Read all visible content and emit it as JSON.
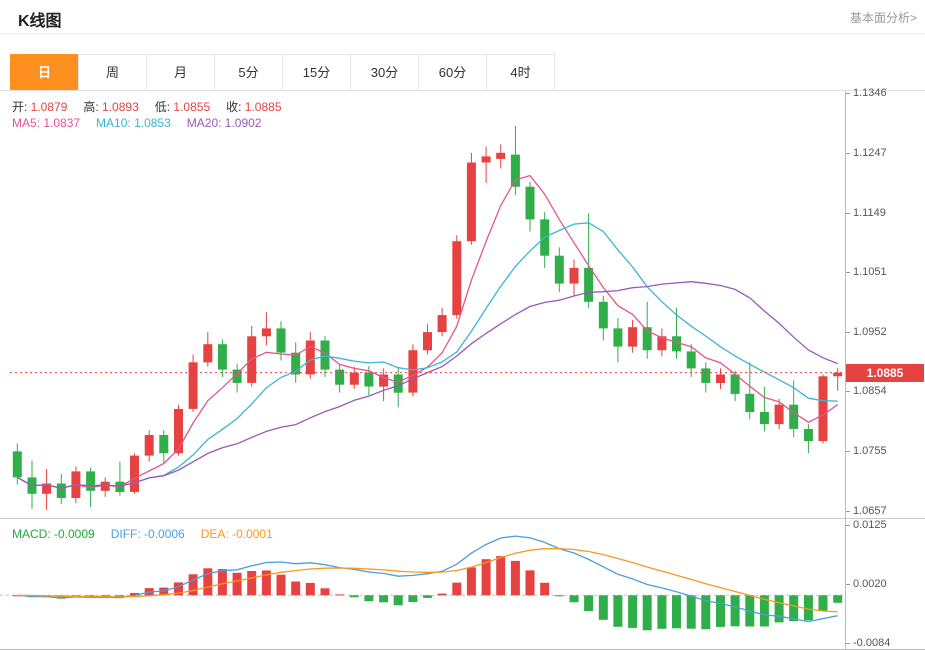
{
  "header": {
    "title": "K线图",
    "analysis_link": "基本面分析>"
  },
  "tabs": {
    "items": [
      "日",
      "周",
      "月",
      "5分",
      "15分",
      "30分",
      "60分",
      "4时"
    ],
    "active_index": 0
  },
  "legend": {
    "ohlc_colors": {
      "label": "#333333",
      "value": "#e64242"
    },
    "ohlc": [
      {
        "label": "开:",
        "value": "1.0879"
      },
      {
        "label": "高:",
        "value": "1.0893"
      },
      {
        "label": "低:",
        "value": "1.0855"
      },
      {
        "label": "收:",
        "value": "1.0885"
      }
    ],
    "ma": [
      {
        "label": "MA5:",
        "value": "1.0837",
        "color": "#e5548f"
      },
      {
        "label": "MA10:",
        "value": "1.0853",
        "color": "#3ab6d6"
      },
      {
        "label": "MA20:",
        "value": "1.0902",
        "color": "#9b59b6"
      }
    ],
    "macd": [
      {
        "label": "MACD:",
        "value": "-0.0009",
        "color": "#1faa38"
      },
      {
        "label": "DIFF:",
        "value": "-0.0006",
        "color": "#4a9fdd"
      },
      {
        "label": "DEA:",
        "value": "-0.0001",
        "color": "#f59a23"
      }
    ]
  },
  "chart_data": {
    "type": "candlestick",
    "title": "K线图",
    "current_price": 1.0885,
    "last_ohlc": {
      "open": 1.0879,
      "high": 1.0893,
      "low": 1.0855,
      "close": 1.0885
    },
    "colors": {
      "up": "#e64242",
      "down": "#2fae49",
      "ma5": "#e5548f",
      "ma10": "#3ab6d6",
      "ma20": "#9b59b6",
      "diff": "#4a9fdd",
      "dea": "#f59a23",
      "price_line": "#e64242"
    },
    "y_axis_labels": [
      1.1346,
      1.1247,
      1.1149,
      1.1051,
      1.0952,
      1.0854,
      1.0755,
      1.0657
    ],
    "y_range": {
      "max": 1.135,
      "min": 1.0645
    },
    "macd_axis_labels": [
      0.0125,
      0.002,
      -0.0084
    ],
    "macd_range": {
      "max": 0.0135,
      "min": -0.0095
    },
    "ma_periods": [
      5,
      10,
      20
    ],
    "candles": [
      [
        1.0755,
        1.0768,
        1.07,
        1.0712
      ],
      [
        1.0712,
        1.074,
        1.066,
        1.0685
      ],
      [
        1.0685,
        1.0726,
        1.0658,
        1.0702
      ],
      [
        1.0702,
        1.0718,
        1.0668,
        1.0678
      ],
      [
        1.0678,
        1.073,
        1.067,
        1.0722
      ],
      [
        1.0722,
        1.0728,
        1.0663,
        1.069
      ],
      [
        1.069,
        1.0712,
        1.068,
        1.0705
      ],
      [
        1.0705,
        1.0738,
        1.0682,
        1.0688
      ],
      [
        1.0688,
        1.0752,
        1.0685,
        1.0748
      ],
      [
        1.0748,
        1.079,
        1.0738,
        1.0782
      ],
      [
        1.0782,
        1.079,
        1.0735,
        1.0752
      ],
      [
        1.0752,
        1.0832,
        1.0748,
        1.0825
      ],
      [
        1.0825,
        1.0915,
        1.082,
        1.0902
      ],
      [
        1.0902,
        1.0952,
        1.0895,
        1.0932
      ],
      [
        1.0932,
        1.094,
        1.0878,
        1.089
      ],
      [
        1.089,
        1.09,
        1.0852,
        1.0868
      ],
      [
        1.0868,
        1.0962,
        1.0862,
        1.0945
      ],
      [
        1.0945,
        1.0985,
        1.093,
        1.0958
      ],
      [
        1.0958,
        1.097,
        1.0905,
        1.0918
      ],
      [
        1.0918,
        1.0935,
        1.0868,
        1.0882
      ],
      [
        1.0882,
        1.0952,
        1.0875,
        1.0938
      ],
      [
        1.0938,
        1.0945,
        1.0878,
        1.089
      ],
      [
        1.089,
        1.0898,
        1.0852,
        1.0865
      ],
      [
        1.0865,
        1.0895,
        1.0858,
        1.0885
      ],
      [
        1.0885,
        1.0896,
        1.0848,
        1.0862
      ],
      [
        1.0862,
        1.0892,
        1.0838,
        1.0882
      ],
      [
        1.0882,
        1.0894,
        1.0828,
        1.0852
      ],
      [
        1.0852,
        1.0932,
        1.0846,
        1.0922
      ],
      [
        1.0922,
        1.0965,
        1.0915,
        1.0952
      ],
      [
        1.0952,
        1.0992,
        1.0945,
        1.098
      ],
      [
        1.098,
        1.1112,
        1.0974,
        1.1102
      ],
      [
        1.1102,
        1.1248,
        1.1096,
        1.1232
      ],
      [
        1.1232,
        1.1258,
        1.1198,
        1.1242
      ],
      [
        1.1238,
        1.1262,
        1.1222,
        1.1248
      ],
      [
        1.1245,
        1.1292,
        1.1178,
        1.1192
      ],
      [
        1.1192,
        1.12,
        1.1118,
        1.1138
      ],
      [
        1.1138,
        1.115,
        1.1058,
        1.1078
      ],
      [
        1.1078,
        1.1092,
        1.1018,
        1.1032
      ],
      [
        1.1032,
        1.1072,
        1.1012,
        1.1058
      ],
      [
        1.1058,
        1.1148,
        1.0992,
        1.1002
      ],
      [
        1.1002,
        1.1012,
        1.0938,
        1.0958
      ],
      [
        1.0958,
        1.0975,
        1.0902,
        1.0928
      ],
      [
        1.0928,
        1.0972,
        1.0918,
        1.096
      ],
      [
        1.096,
        1.1002,
        1.0908,
        1.0922
      ],
      [
        1.0922,
        1.0958,
        1.0912,
        1.0945
      ],
      [
        1.0945,
        1.0992,
        1.0908,
        1.092
      ],
      [
        1.092,
        1.0932,
        1.0878,
        1.0892
      ],
      [
        1.0892,
        1.0902,
        1.0852,
        1.0868
      ],
      [
        1.0868,
        1.0892,
        1.0858,
        1.0882
      ],
      [
        1.0882,
        1.0888,
        1.0838,
        1.085
      ],
      [
        1.085,
        1.0902,
        1.0808,
        1.082
      ],
      [
        1.082,
        1.0862,
        1.0788,
        1.08
      ],
      [
        1.08,
        1.0842,
        1.0792,
        1.0832
      ],
      [
        1.0832,
        1.0872,
        1.0778,
        1.0792
      ],
      [
        1.0792,
        1.08,
        1.0752,
        1.0772
      ],
      [
        1.0772,
        1.0882,
        1.0768,
        1.0879
      ],
      [
        1.0879,
        1.0893,
        1.0855,
        1.0885
      ]
    ]
  }
}
